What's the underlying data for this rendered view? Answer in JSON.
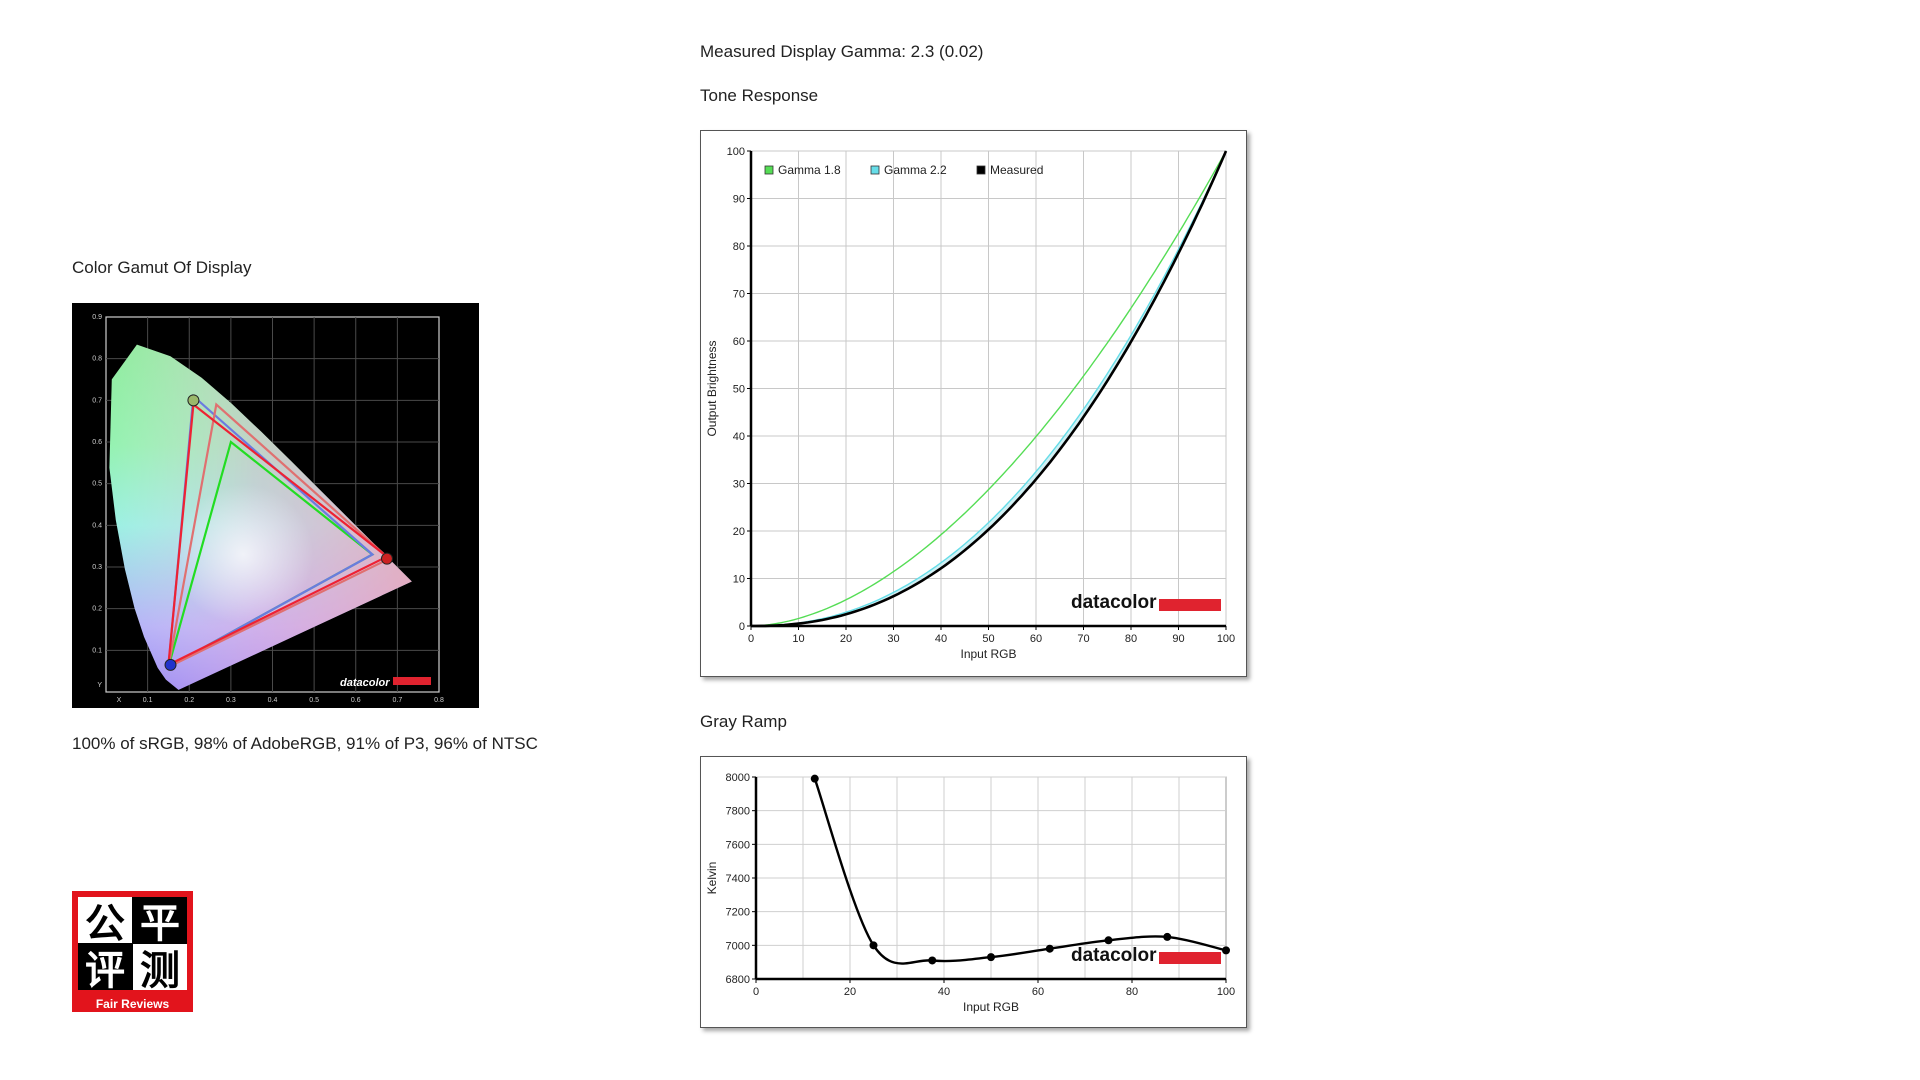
{
  "gamma_heading": "Measured Display Gamma: 2.3 (0.02)",
  "gamut": {
    "title": "Color Gamut Of Display",
    "caption": "100% of sRGB, 98% of AdobeRGB, 91% of P3, 96% of NTSC",
    "x_ticks": [
      "0.1",
      "0.2",
      "0.3",
      "0.4",
      "0.5",
      "0.6",
      "0.7",
      "0.8"
    ],
    "y_ticks": [
      "0.1",
      "0.2",
      "0.3",
      "0.4",
      "0.5",
      "0.6",
      "0.7",
      "0.8",
      "0.9"
    ],
    "x_axis_letter": "X",
    "y_axis_letter": "Y",
    "brand": "datacolor",
    "triangles": [
      {
        "color": "#22dd22",
        "points": [
          [
            0.64,
            0.33
          ],
          [
            0.3,
            0.6
          ],
          [
            0.15,
            0.06
          ]
        ]
      },
      {
        "color": "#6a7be0",
        "points": [
          [
            0.64,
            0.33
          ],
          [
            0.21,
            0.71
          ],
          [
            0.15,
            0.06
          ]
        ]
      },
      {
        "color": "#e07070",
        "points": [
          [
            0.68,
            0.32
          ],
          [
            0.265,
            0.69
          ],
          [
            0.15,
            0.06
          ]
        ]
      },
      {
        "color": "#ee2233",
        "points": [
          [
            0.675,
            0.325
          ],
          [
            0.21,
            0.69
          ],
          [
            0.15,
            0.065
          ]
        ]
      }
    ],
    "primaries": [
      {
        "color": "#cc2222",
        "point": [
          0.675,
          0.32
        ]
      },
      {
        "color": "#9ab86a",
        "point": [
          0.21,
          0.7
        ]
      },
      {
        "color": "#2233cc",
        "point": [
          0.155,
          0.065
        ]
      }
    ]
  },
  "logo": {
    "chars": [
      "公",
      "平",
      "评",
      "测"
    ],
    "tagline": "Fair Reviews",
    "accent": "#e2141c"
  },
  "tone": {
    "title": "Tone Response",
    "brand": "datacolor",
    "chart_data": {
      "type": "line",
      "xlabel": "Input RGB",
      "ylabel": "Output Brightness",
      "xlim": [
        0,
        100
      ],
      "ylim": [
        0,
        100
      ],
      "x_ticks": [
        0,
        10,
        20,
        30,
        40,
        50,
        60,
        70,
        80,
        90,
        100
      ],
      "y_ticks": [
        0,
        10,
        20,
        30,
        40,
        50,
        60,
        70,
        80,
        90,
        100
      ],
      "grid": true,
      "legend": "top-left",
      "series": [
        {
          "name": "Gamma 1.8",
          "color": "#55dd55",
          "gamma": 1.8
        },
        {
          "name": "Gamma 2.2",
          "color": "#66dde8",
          "gamma": 2.2
        },
        {
          "name": "Measured",
          "color": "#000000",
          "gamma": 2.3
        }
      ]
    }
  },
  "gray": {
    "title": "Gray Ramp",
    "brand": "datacolor",
    "chart_data": {
      "type": "line",
      "xlabel": "Input RGB",
      "ylabel": "Kelvin",
      "xlim": [
        0,
        100
      ],
      "ylim": [
        6800,
        8000
      ],
      "x_ticks": [
        0,
        20,
        40,
        60,
        80,
        100
      ],
      "y_ticks": [
        6800,
        7000,
        7200,
        7400,
        7600,
        7800,
        8000
      ],
      "grid": true,
      "x": [
        12.5,
        25,
        37.5,
        50,
        62.5,
        75,
        87.5,
        100
      ],
      "values": [
        7990,
        7000,
        6910,
        6930,
        6980,
        7030,
        7050,
        6970
      ]
    }
  },
  "colors": {
    "datacolor_red": "#e0232f"
  }
}
